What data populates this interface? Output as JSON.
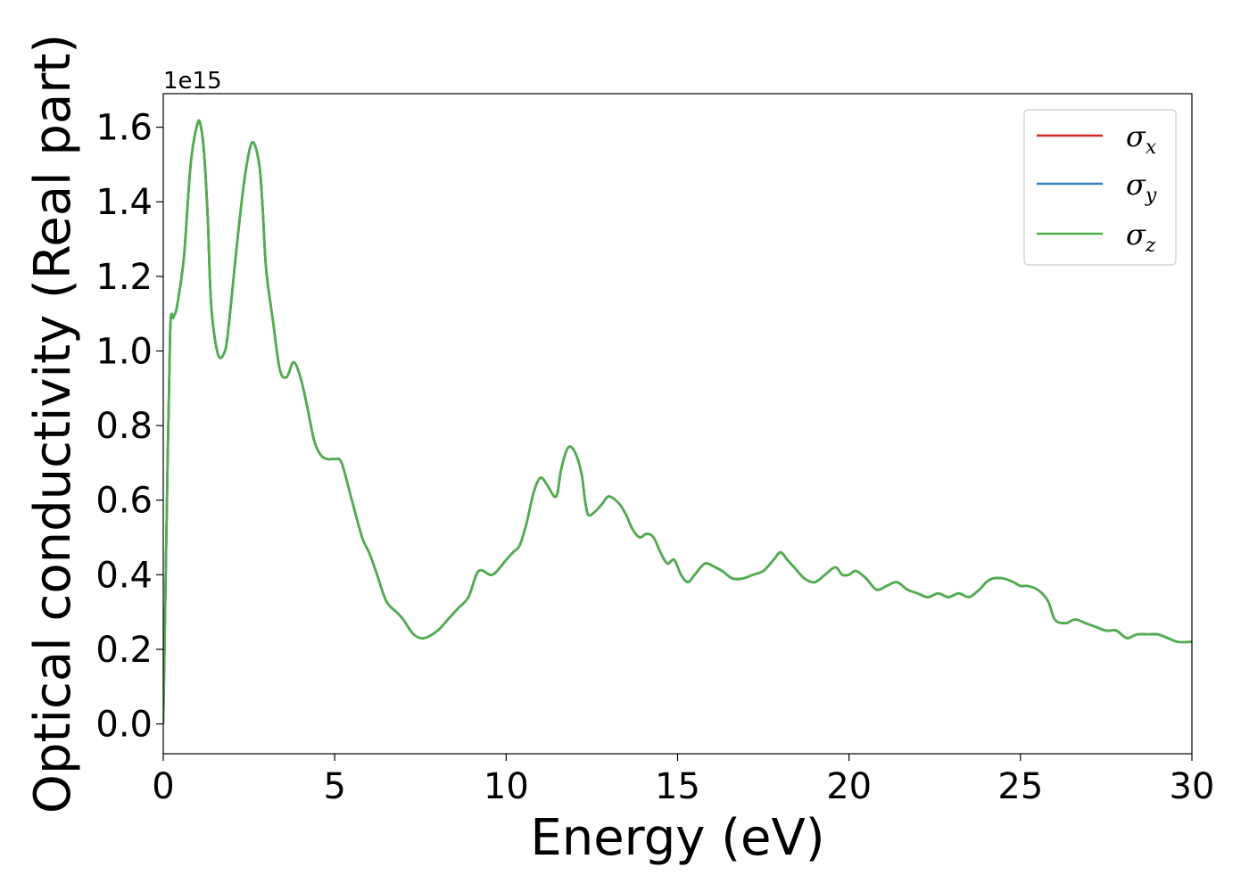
{
  "chart_data": {
    "type": "line",
    "title": "",
    "xlabel": "Energy (eV)",
    "ylabel": "Optical conductivity (Real part)",
    "y_offset_text": "1e15",
    "xlim": [
      0,
      30
    ],
    "ylim": [
      -0.08,
      1.69
    ],
    "x_ticks": [
      0,
      5,
      10,
      15,
      20,
      25,
      30
    ],
    "x_tick_labels": [
      "0",
      "5",
      "10",
      "15",
      "20",
      "25",
      "30"
    ],
    "y_ticks": [
      0.0,
      0.2,
      0.4,
      0.6,
      0.8,
      1.0,
      1.2,
      1.4,
      1.6
    ],
    "y_tick_labels": [
      "0.0",
      "0.2",
      "0.4",
      "0.6",
      "0.8",
      "1.0",
      "1.2",
      "1.4",
      "1.6"
    ],
    "grid": false,
    "legend_position": "top-right",
    "x": [
      0,
      0.1,
      0.2,
      0.3,
      0.4,
      0.6,
      0.8,
      1.0,
      1.1,
      1.2,
      1.3,
      1.4,
      1.6,
      1.8,
      1.9,
      2.0,
      2.2,
      2.4,
      2.6,
      2.8,
      2.9,
      3.0,
      3.2,
      3.4,
      3.6,
      3.8,
      4.0,
      4.2,
      4.4,
      4.6,
      4.8,
      5.0,
      5.2,
      5.5,
      5.8,
      6.0,
      6.2,
      6.5,
      6.8,
      7.0,
      7.3,
      7.6,
      8.0,
      8.3,
      8.6,
      8.9,
      9.2,
      9.6,
      10.0,
      10.2,
      10.4,
      10.6,
      10.8,
      11.0,
      11.2,
      11.4,
      11.5,
      11.6,
      11.8,
      12.0,
      12.2,
      12.3,
      12.4,
      12.6,
      12.8,
      13.0,
      13.3,
      13.5,
      13.7,
      13.9,
      14.1,
      14.3,
      14.5,
      14.7,
      14.9,
      15.1,
      15.3,
      15.5,
      15.8,
      16.1,
      16.3,
      16.6,
      16.9,
      17.2,
      17.5,
      17.8,
      18.0,
      18.2,
      18.4,
      18.7,
      19.0,
      19.3,
      19.6,
      19.8,
      20.0,
      20.2,
      20.5,
      20.8,
      21.1,
      21.4,
      21.7,
      22.0,
      22.3,
      22.6,
      22.9,
      23.2,
      23.5,
      23.8,
      24.0,
      24.2,
      24.5,
      24.8,
      25.0,
      25.2,
      25.5,
      25.8,
      26.0,
      26.3,
      26.6,
      26.9,
      27.2,
      27.5,
      27.8,
      28.1,
      28.4,
      28.7,
      29.0,
      29.3,
      29.6,
      30.0
    ],
    "series": [
      {
        "name": "σx",
        "color": "#d62728",
        "y": [
          0.0,
          0.55,
          1.05,
          1.09,
          1.12,
          1.25,
          1.5,
          1.61,
          1.6,
          1.52,
          1.35,
          1.12,
          0.99,
          1.0,
          1.06,
          1.15,
          1.33,
          1.48,
          1.56,
          1.5,
          1.38,
          1.22,
          1.08,
          0.95,
          0.93,
          0.97,
          0.93,
          0.85,
          0.76,
          0.72,
          0.71,
          0.71,
          0.7,
          0.6,
          0.5,
          0.46,
          0.41,
          0.33,
          0.3,
          0.28,
          0.24,
          0.23,
          0.25,
          0.28,
          0.31,
          0.34,
          0.41,
          0.4,
          0.44,
          0.46,
          0.48,
          0.54,
          0.62,
          0.66,
          0.64,
          0.61,
          0.62,
          0.68,
          0.74,
          0.73,
          0.67,
          0.6,
          0.56,
          0.57,
          0.59,
          0.61,
          0.59,
          0.56,
          0.52,
          0.5,
          0.51,
          0.5,
          0.46,
          0.43,
          0.44,
          0.4,
          0.38,
          0.4,
          0.43,
          0.42,
          0.41,
          0.39,
          0.39,
          0.4,
          0.41,
          0.44,
          0.46,
          0.44,
          0.42,
          0.39,
          0.38,
          0.4,
          0.42,
          0.4,
          0.4,
          0.41,
          0.39,
          0.36,
          0.37,
          0.38,
          0.36,
          0.35,
          0.34,
          0.35,
          0.34,
          0.35,
          0.34,
          0.36,
          0.38,
          0.39,
          0.39,
          0.38,
          0.37,
          0.37,
          0.36,
          0.33,
          0.28,
          0.27,
          0.28,
          0.27,
          0.26,
          0.25,
          0.25,
          0.23,
          0.24,
          0.24,
          0.24,
          0.23,
          0.22,
          0.22
        ]
      },
      {
        "name": "σy",
        "color": "#377eb8",
        "y": [
          0.0,
          0.55,
          1.05,
          1.09,
          1.12,
          1.25,
          1.5,
          1.61,
          1.6,
          1.52,
          1.35,
          1.12,
          0.99,
          1.0,
          1.06,
          1.15,
          1.33,
          1.48,
          1.56,
          1.5,
          1.38,
          1.22,
          1.08,
          0.95,
          0.93,
          0.97,
          0.93,
          0.85,
          0.76,
          0.72,
          0.71,
          0.71,
          0.7,
          0.6,
          0.5,
          0.46,
          0.41,
          0.33,
          0.3,
          0.28,
          0.24,
          0.23,
          0.25,
          0.28,
          0.31,
          0.34,
          0.41,
          0.4,
          0.44,
          0.46,
          0.48,
          0.54,
          0.62,
          0.66,
          0.64,
          0.61,
          0.62,
          0.68,
          0.74,
          0.73,
          0.67,
          0.6,
          0.56,
          0.57,
          0.59,
          0.61,
          0.59,
          0.56,
          0.52,
          0.5,
          0.51,
          0.5,
          0.46,
          0.43,
          0.44,
          0.4,
          0.38,
          0.4,
          0.43,
          0.42,
          0.41,
          0.39,
          0.39,
          0.4,
          0.41,
          0.44,
          0.46,
          0.44,
          0.42,
          0.39,
          0.38,
          0.4,
          0.42,
          0.4,
          0.4,
          0.41,
          0.39,
          0.36,
          0.37,
          0.38,
          0.36,
          0.35,
          0.34,
          0.35,
          0.34,
          0.35,
          0.34,
          0.36,
          0.38,
          0.39,
          0.39,
          0.38,
          0.37,
          0.37,
          0.36,
          0.33,
          0.28,
          0.27,
          0.28,
          0.27,
          0.26,
          0.25,
          0.25,
          0.23,
          0.24,
          0.24,
          0.24,
          0.23,
          0.22,
          0.22
        ]
      },
      {
        "name": "σz",
        "color": "#4daf4a",
        "y": [
          0.0,
          0.55,
          1.05,
          1.09,
          1.12,
          1.25,
          1.5,
          1.61,
          1.6,
          1.52,
          1.35,
          1.12,
          0.99,
          1.0,
          1.06,
          1.15,
          1.33,
          1.48,
          1.56,
          1.5,
          1.38,
          1.22,
          1.08,
          0.95,
          0.93,
          0.97,
          0.93,
          0.85,
          0.76,
          0.72,
          0.71,
          0.71,
          0.7,
          0.6,
          0.5,
          0.46,
          0.41,
          0.33,
          0.3,
          0.28,
          0.24,
          0.23,
          0.25,
          0.28,
          0.31,
          0.34,
          0.41,
          0.4,
          0.44,
          0.46,
          0.48,
          0.54,
          0.62,
          0.66,
          0.64,
          0.61,
          0.62,
          0.68,
          0.74,
          0.73,
          0.67,
          0.6,
          0.56,
          0.57,
          0.59,
          0.61,
          0.59,
          0.56,
          0.52,
          0.5,
          0.51,
          0.5,
          0.46,
          0.43,
          0.44,
          0.4,
          0.38,
          0.4,
          0.43,
          0.42,
          0.41,
          0.39,
          0.39,
          0.4,
          0.41,
          0.44,
          0.46,
          0.44,
          0.42,
          0.39,
          0.38,
          0.4,
          0.42,
          0.4,
          0.4,
          0.41,
          0.39,
          0.36,
          0.37,
          0.38,
          0.36,
          0.35,
          0.34,
          0.35,
          0.34,
          0.35,
          0.34,
          0.36,
          0.38,
          0.39,
          0.39,
          0.38,
          0.37,
          0.37,
          0.36,
          0.33,
          0.28,
          0.27,
          0.28,
          0.27,
          0.26,
          0.25,
          0.25,
          0.23,
          0.24,
          0.24,
          0.24,
          0.23,
          0.22,
          0.22
        ]
      }
    ]
  }
}
